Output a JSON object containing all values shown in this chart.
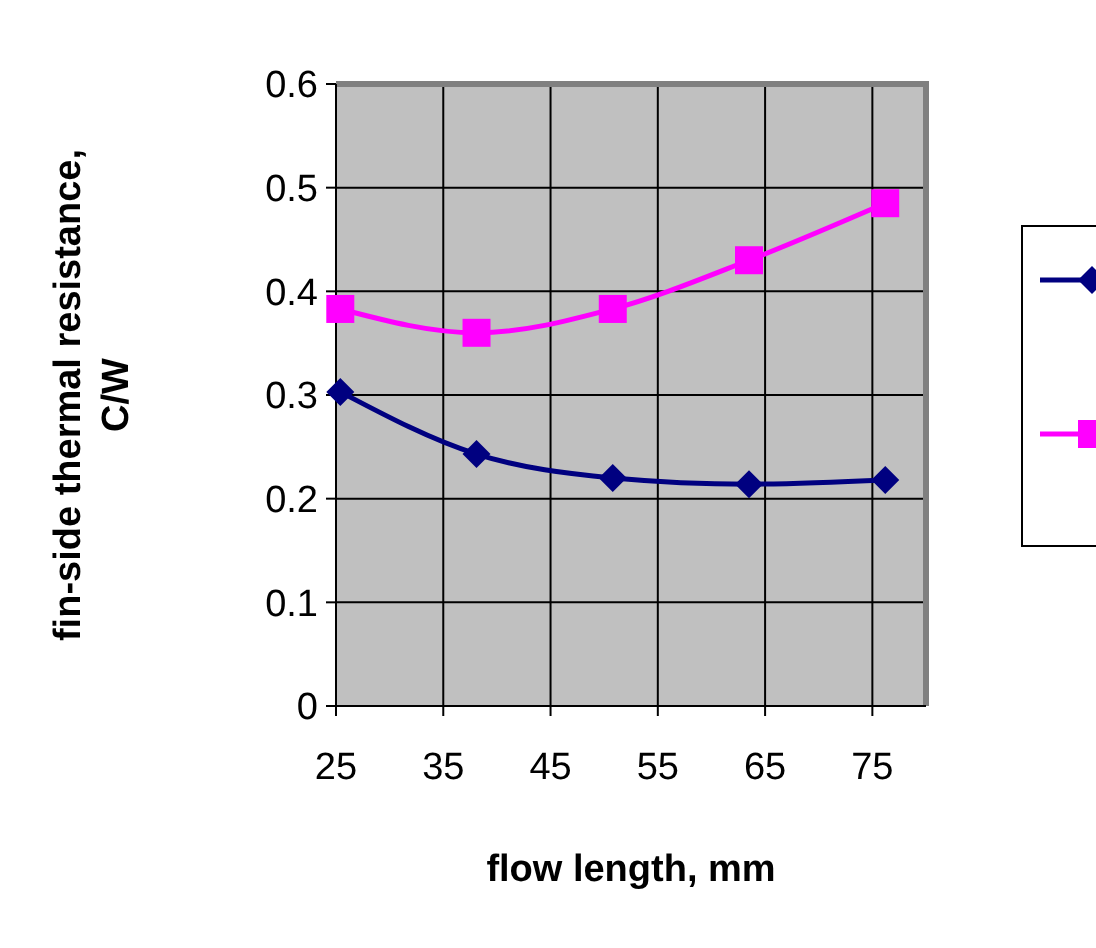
{
  "chart_data": {
    "type": "line",
    "xlabel": "flow length, mm",
    "ylabel": "fin-side thermal resistance, C/W",
    "x": [
      25.4,
      38.1,
      50.8,
      63.5,
      76.2
    ],
    "series": [
      {
        "color": "#000080",
        "marker": "diamond",
        "values": [
          0.303,
          0.243,
          0.22,
          0.214,
          0.218
        ]
      },
      {
        "color": "#ff00ff",
        "marker": "square",
        "values": [
          0.383,
          0.36,
          0.383,
          0.43,
          0.485
        ]
      }
    ],
    "xlim": [
      25,
      80
    ],
    "xticks": [
      25,
      35,
      45,
      55,
      65,
      75
    ],
    "ylim": [
      0,
      0.6
    ],
    "yticks": [
      0,
      0.1,
      0.2,
      0.3,
      0.4,
      0.5,
      0.6
    ],
    "grid": true
  }
}
